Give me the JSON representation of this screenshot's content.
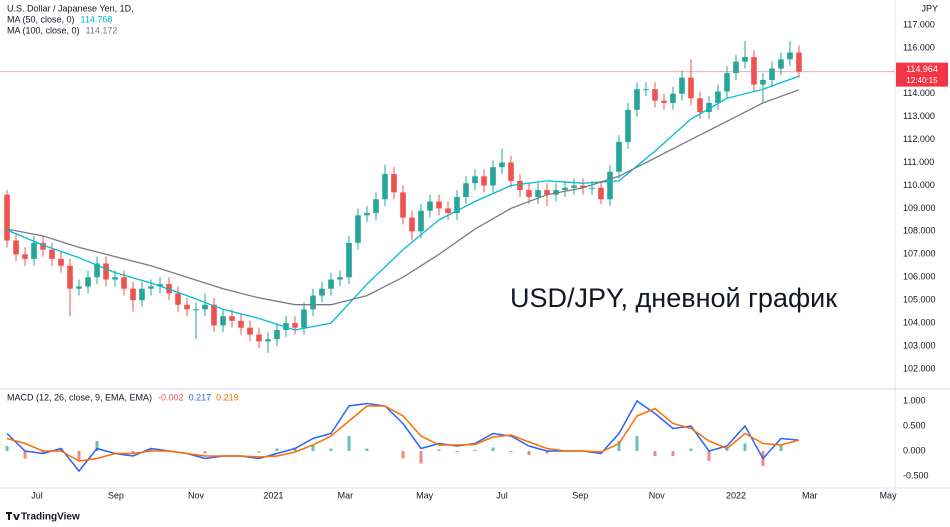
{
  "brand": "TradingView",
  "chart_data": [
    {
      "type": "candlestick",
      "title": "U.S. Dollar / Japanese Yen, 1D,",
      "currency": "JPY",
      "countdown": "12:40:15",
      "annotation": "USD/JPY, дневной график",
      "annotation_color": "#089981",
      "up_color": "#26a69a",
      "down_color": "#ef5350",
      "last_price_color": "#f23645",
      "grid": false,
      "xlim": [
        -0.78,
        98.67
      ],
      "ylim": [
        101.17,
        117.87
      ],
      "yticks": [
        {
          "value": 102,
          "label": "102.000"
        },
        {
          "value": 103,
          "label": "103.000"
        },
        {
          "value": 104,
          "label": "104.000"
        },
        {
          "value": 105,
          "label": "105.000"
        },
        {
          "value": 106,
          "label": "106.000"
        },
        {
          "value": 107,
          "label": "107.000"
        },
        {
          "value": 108,
          "label": "108.000"
        },
        {
          "value": 109,
          "label": "109.000"
        },
        {
          "value": 110,
          "label": "110.000"
        },
        {
          "value": 111,
          "label": "111.000"
        },
        {
          "value": 112,
          "label": "112.000"
        },
        {
          "value": 113,
          "label": "113.000"
        },
        {
          "value": 114,
          "label": "114.000"
        },
        {
          "value": 115,
          "label": "115.000"
        },
        {
          "value": 116,
          "label": "116.000"
        },
        {
          "value": 117,
          "label": "117.000"
        }
      ],
      "open": [
        109.6,
        107.6,
        107.0,
        106.8,
        107.5,
        107.2,
        106.8,
        106.5,
        105.5,
        105.6,
        106.0,
        106.6,
        105.9,
        106.0,
        105.5,
        105.0,
        105.5,
        105.6,
        105.7,
        105.3,
        104.8,
        104.6,
        104.6,
        104.8,
        103.9,
        104.3,
        104.1,
        103.8,
        103.5,
        103.2,
        103.3,
        103.7,
        104.0,
        103.8,
        104.6,
        105.2,
        105.5,
        105.9,
        106.0,
        107.5,
        108.7,
        108.8,
        109.4,
        110.5,
        109.7,
        108.6,
        108.0,
        108.9,
        109.3,
        109.0,
        108.8,
        109.5,
        110.1,
        110.4,
        110.0,
        110.8,
        111.0,
        110.2,
        109.8,
        109.5,
        109.8,
        109.6,
        109.8,
        109.9,
        110.0,
        109.9,
        109.9,
        109.4,
        110.6,
        111.9,
        113.3,
        114.2,
        114.2,
        113.7,
        113.6,
        114.0,
        114.7,
        113.8,
        113.2,
        113.6,
        114.1,
        114.9,
        115.4,
        115.6,
        114.4,
        114.6,
        115.1,
        115.5,
        115.8
      ],
      "high": [
        109.8,
        107.9,
        107.3,
        107.8,
        107.8,
        107.5,
        107.1,
        106.8,
        105.9,
        106.3,
        106.9,
        106.9,
        106.3,
        106.3,
        105.8,
        105.8,
        105.9,
        106.0,
        106.0,
        105.6,
        105.1,
        104.9,
        105.3,
        105.1,
        104.6,
        104.6,
        104.4,
        104.1,
        103.8,
        103.6,
        104.0,
        104.3,
        104.3,
        104.9,
        105.5,
        105.8,
        106.2,
        106.3,
        107.8,
        109.0,
        109.1,
        109.7,
        110.9,
        110.8,
        110.0,
        108.9,
        109.2,
        109.6,
        109.6,
        109.3,
        109.8,
        110.4,
        110.7,
        110.7,
        111.1,
        111.6,
        111.3,
        110.5,
        110.1,
        110.1,
        110.1,
        110.1,
        110.2,
        110.3,
        110.3,
        110.2,
        110.2,
        110.9,
        112.2,
        113.6,
        114.5,
        114.5,
        114.5,
        114.0,
        114.3,
        115.0,
        115.5,
        114.1,
        113.9,
        114.4,
        115.2,
        115.7,
        116.3,
        115.9,
        114.9,
        115.4,
        115.8,
        116.3,
        116.1
      ],
      "low": [
        107.3,
        106.7,
        106.5,
        106.5,
        106.9,
        106.5,
        106.2,
        104.3,
        105.2,
        105.3,
        105.7,
        105.6,
        105.6,
        105.2,
        104.5,
        104.7,
        105.2,
        105.3,
        105.0,
        104.5,
        104.3,
        103.3,
        104.3,
        103.6,
        103.6,
        103.8,
        103.5,
        103.2,
        102.9,
        102.7,
        103.0,
        103.4,
        103.5,
        103.5,
        104.3,
        104.9,
        105.2,
        105.6,
        105.7,
        107.2,
        108.4,
        108.5,
        109.1,
        109.4,
        108.3,
        107.6,
        107.7,
        108.6,
        108.7,
        108.5,
        108.5,
        109.2,
        109.8,
        109.7,
        109.7,
        110.5,
        109.9,
        109.5,
        109.2,
        109.2,
        109.1,
        109.3,
        109.5,
        109.6,
        109.6,
        109.6,
        109.2,
        109.1,
        110.3,
        111.6,
        113.0,
        113.9,
        113.4,
        113.3,
        113.3,
        113.7,
        113.5,
        112.9,
        112.9,
        113.3,
        113.8,
        114.6,
        115.1,
        114.1,
        113.6,
        114.3,
        114.8,
        115.2,
        114.7
      ],
      "close": [
        107.6,
        107.0,
        106.8,
        107.5,
        107.2,
        106.8,
        106.5,
        105.5,
        105.6,
        106.0,
        106.6,
        105.9,
        106.0,
        105.5,
        105.0,
        105.5,
        105.6,
        105.7,
        105.3,
        104.8,
        104.6,
        104.6,
        104.8,
        103.9,
        104.3,
        104.1,
        103.8,
        103.5,
        103.2,
        103.3,
        103.7,
        104.0,
        103.8,
        104.6,
        105.2,
        105.5,
        105.9,
        106.0,
        107.5,
        108.7,
        108.8,
        109.4,
        110.5,
        109.7,
        108.6,
        108.0,
        108.9,
        109.3,
        109.0,
        108.8,
        109.5,
        110.1,
        110.4,
        110.0,
        110.8,
        111.0,
        110.2,
        109.8,
        109.5,
        109.8,
        109.6,
        109.8,
        109.9,
        110.0,
        109.9,
        109.9,
        109.4,
        110.6,
        111.9,
        113.3,
        114.2,
        114.2,
        113.7,
        113.6,
        114.0,
        114.7,
        113.8,
        113.2,
        113.6,
        114.1,
        114.9,
        115.4,
        115.6,
        114.4,
        114.6,
        115.1,
        115.5,
        115.8,
        114.964
      ],
      "overlays": [
        {
          "name": "MA (50, close, 0)",
          "color": "#00bcd4",
          "x": [
            0,
            4,
            8,
            12,
            16,
            20,
            24,
            28,
            32,
            36,
            40,
            44,
            48,
            52,
            56,
            60,
            64,
            68,
            72,
            76,
            80,
            84,
            88
          ],
          "values": [
            108.06,
            107.4,
            106.85,
            106.2,
            105.75,
            105.2,
            104.6,
            104.2,
            103.7,
            104.0,
            105.7,
            107.2,
            108.5,
            109.3,
            110.0,
            110.2,
            110.1,
            110.2,
            111.5,
            112.9,
            113.8,
            114.2,
            114.768
          ]
        },
        {
          "name": "MA (100, close, 0)",
          "color": "#787b86",
          "x": [
            0,
            4,
            8,
            12,
            16,
            20,
            24,
            28,
            32,
            36,
            40,
            44,
            48,
            52,
            56,
            60,
            64,
            68,
            72,
            76,
            80,
            84,
            88
          ],
          "values": [
            108.1,
            107.8,
            107.3,
            106.9,
            106.5,
            106.0,
            105.5,
            105.1,
            104.8,
            104.8,
            105.2,
            106.0,
            107.0,
            108.1,
            109.0,
            109.6,
            109.9,
            110.4,
            111.2,
            112.0,
            112.8,
            113.6,
            114.172
          ]
        }
      ]
    },
    {
      "type": "macd",
      "title": "MACD (12, 26, close, 9, EMA, EMA)",
      "xlim": [
        -0.78,
        98.67
      ],
      "ylim": [
        -0.74,
        1.18
      ],
      "yticks": [
        {
          "value": -0.5,
          "label": "-0.500"
        },
        {
          "value": 0,
          "label": "0.000"
        },
        {
          "value": 0.5,
          "label": "0.500"
        },
        {
          "value": 1,
          "label": "1.000"
        }
      ],
      "xticks": [
        {
          "value": 3.33,
          "label": "Jul"
        },
        {
          "value": 12.1,
          "label": "Sep"
        },
        {
          "value": 21.0,
          "label": "Nov"
        },
        {
          "value": 29.6,
          "label": "2021"
        },
        {
          "value": 37.6,
          "label": "Mar"
        },
        {
          "value": 46.4,
          "label": "May"
        },
        {
          "value": 55.0,
          "label": "Jul"
        },
        {
          "value": 63.7,
          "label": "Sep"
        },
        {
          "value": 72.2,
          "label": "Nov"
        },
        {
          "value": 81.0,
          "label": "2022"
        },
        {
          "value": 89.2,
          "label": "Mar"
        },
        {
          "value": 97.9,
          "label": "May"
        }
      ],
      "x": [
        0,
        2,
        4,
        6,
        8,
        10,
        12,
        14,
        16,
        18,
        20,
        22,
        24,
        26,
        28,
        30,
        32,
        34,
        36,
        38,
        40,
        42,
        44,
        46,
        48,
        50,
        52,
        54,
        56,
        58,
        60,
        62,
        64,
        66,
        68,
        70,
        72,
        74,
        76,
        78,
        80,
        82,
        84,
        86,
        88
      ],
      "histogram": {
        "color_up": "#26a69a",
        "color_down": "#ef5350",
        "values": [
          0.1,
          -0.15,
          -0.05,
          0.05,
          -0.2,
          0.2,
          0.0,
          -0.05,
          0.05,
          0.0,
          0.0,
          -0.05,
          0.0,
          0.0,
          -0.03,
          0.05,
          0.07,
          0.13,
          0.05,
          0.3,
          0.05,
          0.0,
          -0.15,
          -0.25,
          0.03,
          -0.02,
          0.02,
          0.07,
          -0.02,
          -0.08,
          -0.05,
          0.0,
          0.0,
          -0.03,
          0.2,
          0.3,
          -0.1,
          -0.1,
          0.05,
          -0.2,
          0.05,
          0.15,
          -0.3,
          0.13,
          -0.002
        ]
      },
      "series": [
        {
          "color": "#2962ff",
          "values": [
            0.35,
            0.0,
            -0.05,
            0.05,
            -0.4,
            0.05,
            -0.05,
            -0.1,
            0.05,
            0.0,
            -0.05,
            -0.15,
            -0.1,
            -0.1,
            -0.15,
            -0.05,
            0.05,
            0.25,
            0.35,
            0.9,
            0.95,
            0.9,
            0.55,
            0.05,
            0.15,
            0.1,
            0.15,
            0.35,
            0.3,
            0.1,
            0.0,
            0.0,
            0.0,
            -0.05,
            0.35,
            1.0,
            0.75,
            0.45,
            0.5,
            0.0,
            0.1,
            0.5,
            -0.15,
            0.25,
            0.217
          ]
        },
        {
          "color": "#ff6d00",
          "values": [
            0.25,
            0.15,
            0.0,
            0.0,
            -0.2,
            -0.15,
            -0.05,
            -0.05,
            0.0,
            0.0,
            -0.05,
            -0.1,
            -0.1,
            -0.1,
            -0.12,
            -0.1,
            -0.02,
            0.12,
            0.3,
            0.6,
            0.9,
            0.9,
            0.7,
            0.3,
            0.12,
            0.12,
            0.13,
            0.28,
            0.32,
            0.18,
            0.05,
            0.0,
            0.0,
            -0.02,
            0.15,
            0.7,
            0.85,
            0.55,
            0.45,
            0.2,
            0.05,
            0.35,
            0.15,
            0.12,
            0.219
          ]
        }
      ]
    }
  ]
}
